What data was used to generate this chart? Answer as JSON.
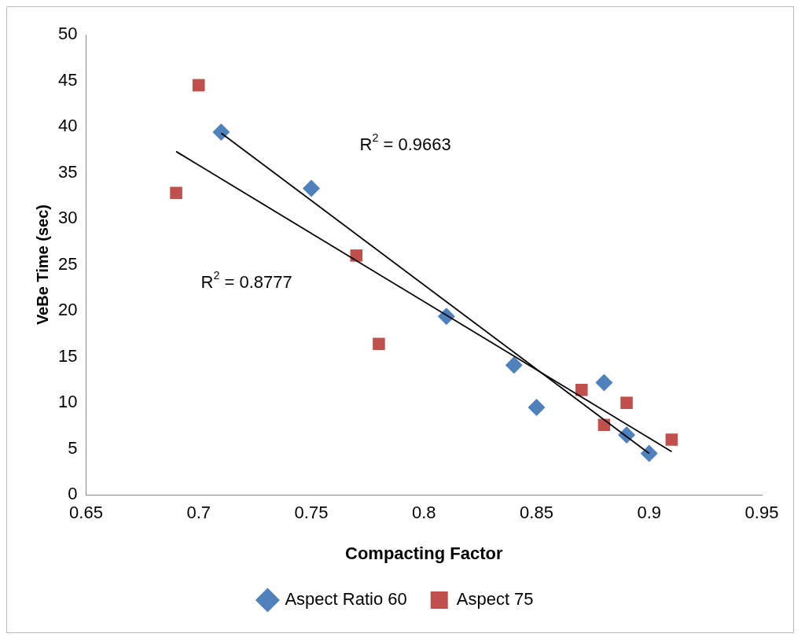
{
  "chart_data": {
    "type": "scatter",
    "xlabel": "Compacting Factor",
    "ylabel": "VeBe Time (sec)",
    "xlim": [
      0.65,
      0.95
    ],
    "xticks": [
      0.65,
      0.7,
      0.75,
      0.8,
      0.85,
      0.9,
      0.95
    ],
    "ylim": [
      0,
      50
    ],
    "yticks": [
      0,
      5,
      10,
      15,
      20,
      25,
      30,
      35,
      40,
      45,
      50
    ],
    "grid": false,
    "legend": "bottom",
    "series": [
      {
        "name": "Aspect Ratio 60",
        "color": "#4f81bd",
        "marker": "diamond",
        "x": [
          0.71,
          0.75,
          0.81,
          0.84,
          0.85,
          0.88,
          0.89,
          0.9
        ],
        "values": [
          39.4,
          33.3,
          19.4,
          14.1,
          9.5,
          12.2,
          6.5,
          4.5
        ]
      },
      {
        "name": "Aspect 75",
        "color": "#c0504d",
        "marker": "square",
        "x": [
          0.69,
          0.7,
          0.77,
          0.78,
          0.87,
          0.88,
          0.89,
          0.91
        ],
        "values": [
          32.8,
          44.5,
          26.0,
          16.4,
          11.4,
          7.6,
          10.0,
          6.0
        ]
      },
      {
        "type": "line",
        "color": "#000000",
        "marker": "none",
        "x": [
          0.71,
          0.9
        ],
        "values": [
          39.3,
          4.5
        ]
      },
      {
        "type": "line",
        "color": "#000000",
        "marker": "none",
        "x": [
          0.69,
          0.91
        ],
        "values": [
          37.3,
          4.7
        ]
      }
    ],
    "annotations": [
      "R$^{2}$ = 0.9663",
      "R$^{2}$ = 0.8777"
    ]
  }
}
